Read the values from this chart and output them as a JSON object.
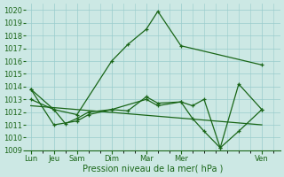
{
  "background_color": "#cce8e4",
  "grid_color": "#99cccc",
  "line_color": "#1a6618",
  "x_labels": [
    "Lun",
    "Jeu",
    "Sam",
    "Dim",
    "Mar",
    "Mer",
    "Ven"
  ],
  "x_positions": [
    0,
    0.5,
    1.0,
    1.75,
    2.5,
    3.25,
    5.0
  ],
  "xlim": [
    -0.1,
    5.4
  ],
  "xlabel": "Pression niveau de la mer( hPa )",
  "ylim": [
    1009,
    1020.5
  ],
  "yticks": [
    1009,
    1010,
    1011,
    1012,
    1013,
    1014,
    1015,
    1016,
    1017,
    1018,
    1019,
    1020
  ],
  "line1": {
    "x": [
      0,
      0.5,
      1.0,
      1.75,
      2.1,
      2.5,
      2.75,
      3.25,
      5.0
    ],
    "y": [
      1013.0,
      1012.2,
      1011.8,
      1016.0,
      1017.3,
      1018.5,
      1019.9,
      1017.2,
      1015.7
    ]
  },
  "line2": {
    "x": [
      0,
      0.5,
      0.75,
      1.0,
      1.25,
      1.75,
      2.1,
      2.5,
      2.75,
      3.25,
      3.5,
      3.75,
      4.1,
      4.5,
      5.0
    ],
    "y": [
      1013.8,
      1012.2,
      1011.1,
      1011.5,
      1012.0,
      1012.2,
      1012.1,
      1013.2,
      1012.7,
      1012.8,
      1011.5,
      1010.5,
      1009.2,
      1010.5,
      1012.2
    ]
  },
  "line3": {
    "x": [
      0,
      0.5,
      1.0,
      1.25,
      1.75,
      2.5,
      2.75,
      3.25,
      3.5,
      3.75,
      4.1,
      4.5,
      5.0
    ],
    "y": [
      1013.8,
      1011.0,
      1011.3,
      1011.8,
      1012.2,
      1013.0,
      1012.5,
      1012.8,
      1012.5,
      1013.0,
      1009.2,
      1014.2,
      1012.2
    ]
  },
  "line4": {
    "x": [
      0,
      5.0
    ],
    "y": [
      1012.5,
      1011.0
    ]
  }
}
